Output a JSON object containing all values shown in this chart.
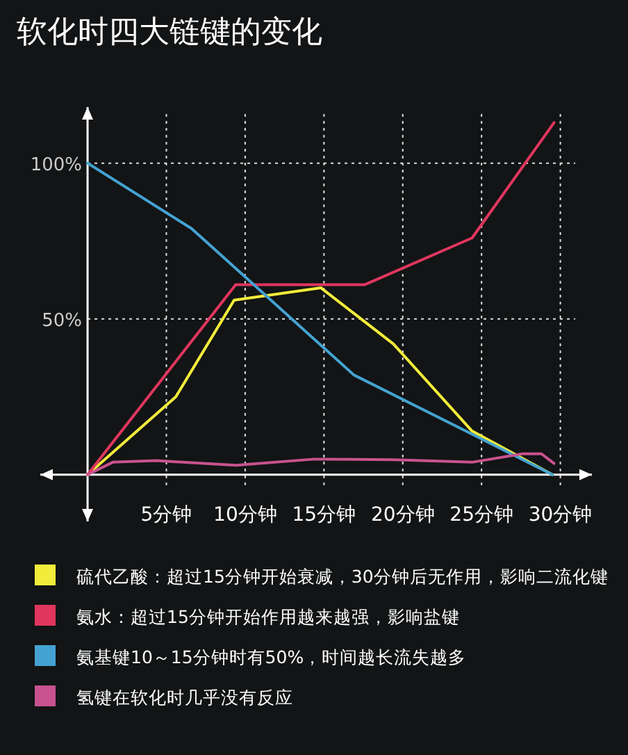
{
  "chart_data": {
    "type": "line",
    "title": "软化时四大链键的变化",
    "xlim": [
      -3,
      32
    ],
    "ylim": [
      -15,
      118
    ],
    "xticks": [
      {
        "value": 5,
        "label": "5分钟"
      },
      {
        "value": 10,
        "label": "10分钟"
      },
      {
        "value": 15,
        "label": "15分钟"
      },
      {
        "value": 20,
        "label": "20分钟"
      },
      {
        "value": 25,
        "label": "25分钟"
      },
      {
        "value": 30,
        "label": "30分钟"
      }
    ],
    "yticks": [
      {
        "value": 50,
        "label": "50%"
      },
      {
        "value": 100,
        "label": "100%"
      }
    ],
    "grid": true,
    "legend": "bottom",
    "series": [
      {
        "name": "硫代乙酸：超过15分钟开始衰减，30分钟后无作用，影响二流化键",
        "color": "#f2ec3a",
        "x": [
          0,
          5.6,
          9.3,
          14.8,
          19.4,
          24.4,
          29.5
        ],
        "values": [
          0,
          25,
          56,
          60,
          42,
          14,
          0
        ]
      },
      {
        "name": "氨水：超过15分钟开始作用越来越强，影响盐键",
        "color": "#e0365e",
        "x": [
          0,
          9.4,
          17.6,
          24.4,
          29.6
        ],
        "values": [
          0,
          61,
          61,
          76,
          113
        ]
      },
      {
        "name": "氨基键10～15分钟时有50%，时间越长流失越多",
        "color": "#44a2d2",
        "x": [
          0,
          6.6,
          16.9,
          24.4,
          29.5
        ],
        "values": [
          100,
          79,
          32,
          13,
          0
        ]
      },
      {
        "name": "氢键在软化时几乎没有反应",
        "color": "#c8528e",
        "x": [
          0,
          1.6,
          4.4,
          9.4,
          14.4,
          19.4,
          24.4,
          27.6,
          28.8,
          29.6
        ],
        "values": [
          0,
          4,
          4.5,
          3,
          5,
          4.8,
          4,
          6.7,
          6.7,
          3.6
        ]
      }
    ]
  }
}
